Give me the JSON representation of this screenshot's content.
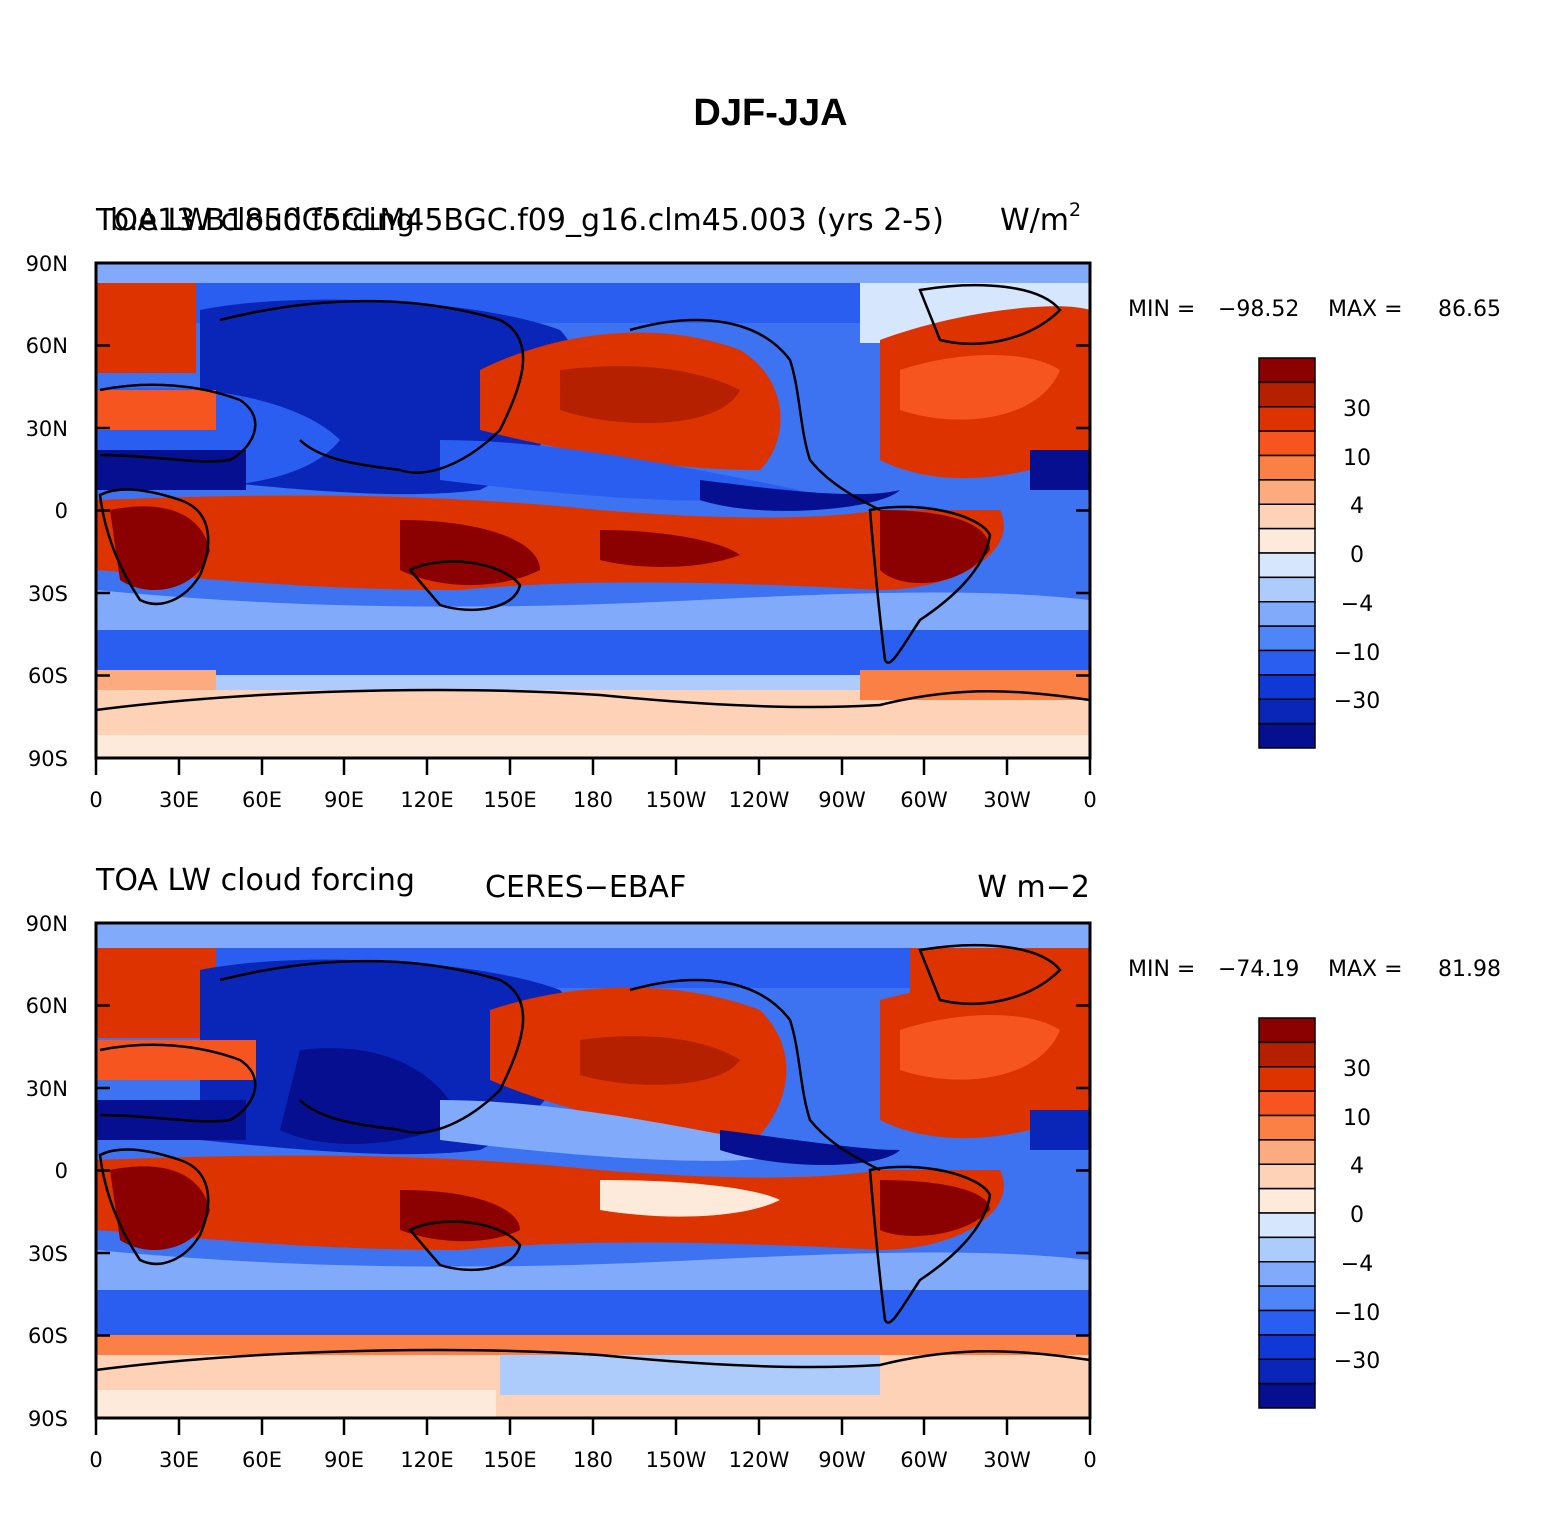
{
  "figure": {
    "title": "DJF-JJA"
  },
  "panels": [
    {
      "title_left": "TOA LW cloud forcing",
      "title_overlap": "b.e13.B1850C5CLM45BGC.f09_g16.clm45.003 (yrs 2-5)",
      "units_prefix": "W/m",
      "units_superscript": "2",
      "min_label": "MIN = ",
      "min_value": "−98.52",
      "max_label": "MAX = ",
      "max_value": "86.65",
      "map_description": "DJF minus JJA difference map of top-of-atmosphere longwave cloud forcing"
    },
    {
      "title_left": "TOA LW cloud forcing",
      "title_center": "CERES−EBAF",
      "units": "W m−2",
      "min_label": "MIN = ",
      "min_value": "−74.19",
      "max_label": "MAX = ",
      "max_value": "81.98",
      "map_description": "DJF minus JJA difference map of top-of-atmosphere longwave cloud forcing from observations"
    }
  ],
  "axes": {
    "lat_labels": [
      "90N",
      "60N",
      "30N",
      "0",
      "30S",
      "60S",
      "90S"
    ],
    "lon_labels": [
      "0",
      "30E",
      "60E",
      "90E",
      "120E",
      "150E",
      "180",
      "150W",
      "120W",
      "90W",
      "60W",
      "30W",
      "0"
    ]
  },
  "colorbar": {
    "colors": [
      "#8b0000",
      "#b52000",
      "#dd3300",
      "#f7551f",
      "#fb8046",
      "#fcab80",
      "#fdd2b6",
      "#feeadb",
      "#d5e6fd",
      "#adccfc",
      "#82aafa",
      "#4f86f7",
      "#2a5ef0",
      "#1038d7",
      "#0a26b8",
      "#050f8f"
    ],
    "labels": [
      "30",
      "10",
      "4",
      "0",
      "−4",
      "−10",
      "−30"
    ]
  },
  "chart_data": [
    {
      "type": "heatmap",
      "title": "TOA LW cloud forcing — b.e13.B1850C5CLM45BGC.f09_g16.clm45.003 (yrs 2-5), DJF-JJA",
      "units": "W/m2",
      "x_range_deg": [
        0,
        360
      ],
      "y_range_deg": [
        -90,
        90
      ],
      "min": -98.52,
      "max": 86.65,
      "levels": [
        -40,
        -30,
        -20,
        -10,
        -6,
        -4,
        -2,
        0,
        2,
        4,
        6,
        10,
        20,
        30,
        40
      ]
    },
    {
      "type": "heatmap",
      "title": "TOA LW cloud forcing — CERES-EBAF, DJF-JJA",
      "units": "W m-2",
      "x_range_deg": [
        0,
        360
      ],
      "y_range_deg": [
        -90,
        90
      ],
      "min": -74.19,
      "max": 81.98,
      "levels": [
        -40,
        -30,
        -20,
        -10,
        -6,
        -4,
        -2,
        0,
        2,
        4,
        6,
        10,
        20,
        30,
        40
      ]
    }
  ]
}
